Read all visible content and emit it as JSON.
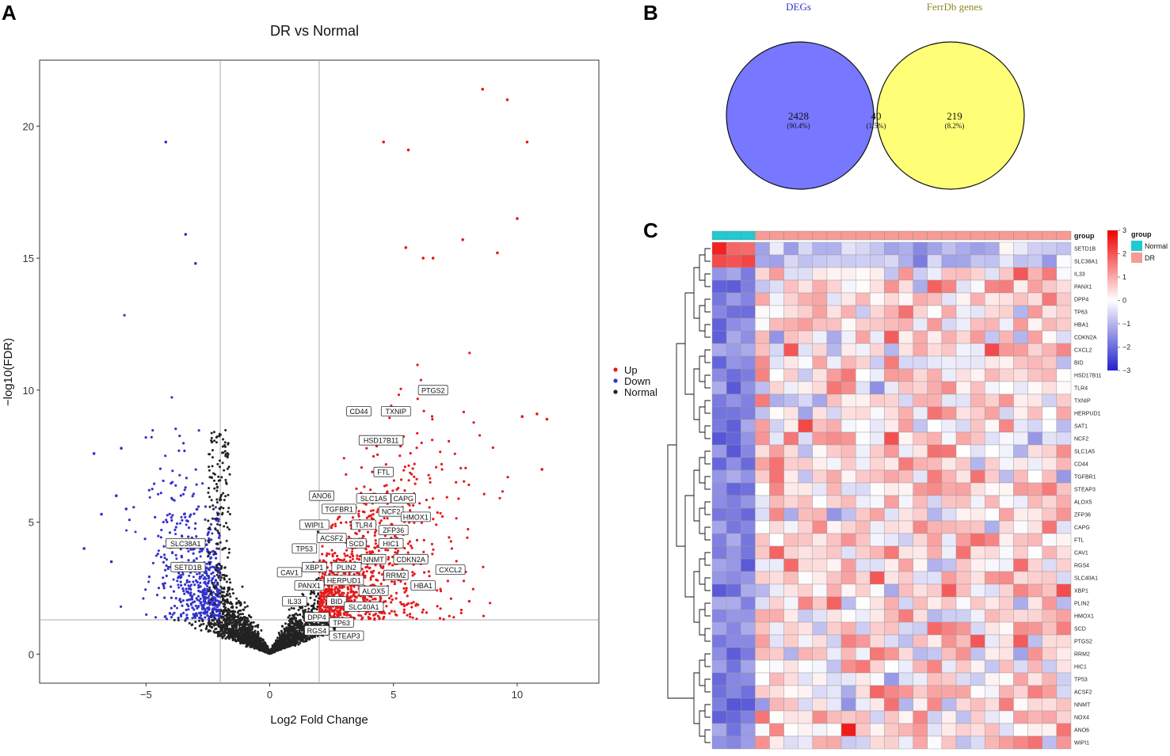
{
  "panels": {
    "a": "A",
    "b": "B",
    "c": "C"
  },
  "chart_data": [
    {
      "type": "scatter",
      "panel": "A",
      "title": "DR vs Normal",
      "xlabel": "Log2 Fold Change",
      "ylabel": "−log10(FDR)",
      "xlim": [
        -9.3,
        13.3
      ],
      "ylim": [
        -1.1,
        22.5
      ],
      "xticks": [
        -5,
        0,
        5,
        10
      ],
      "yticks": [
        0,
        5,
        10,
        15,
        20
      ],
      "thresholds": {
        "logfc": [
          -2,
          2
        ],
        "neg_log10_fdr": 1.3
      },
      "legend": {
        "position": "right",
        "entries": [
          {
            "name": "Up",
            "color": "#e41a1c"
          },
          {
            "name": "Down",
            "color": "#3333cc"
          },
          {
            "name": "Normal",
            "color": "#222222"
          }
        ]
      },
      "outliers": [
        [
          8.6,
          21.4
        ],
        [
          9.6,
          21.0
        ],
        [
          10.4,
          19.4
        ],
        [
          4.6,
          19.4
        ],
        [
          5.6,
          19.1
        ],
        [
          10.0,
          16.5
        ],
        [
          7.8,
          15.7
        ],
        [
          5.5,
          15.4
        ],
        [
          6.2,
          15.0
        ],
        [
          6.6,
          15.0
        ],
        [
          9.2,
          15.2
        ],
        [
          11.2,
          8.9
        ],
        [
          10.8,
          9.1
        ],
        [
          10.2,
          9.0
        ],
        [
          11.0,
          7.0
        ],
        [
          -4.2,
          19.4
        ],
        [
          -3.4,
          15.9
        ],
        [
          -3.0,
          14.8
        ],
        [
          -7.1,
          7.6
        ],
        [
          -6.0,
          7.8
        ],
        [
          -6.8,
          5.3
        ],
        [
          -6.2,
          6.0
        ],
        [
          -5.8,
          5.5
        ],
        [
          -7.5,
          4.0
        ],
        [
          -6.4,
          3.5
        ]
      ],
      "labels": [
        {
          "text": "PTGS2",
          "x": 6.6,
          "y": 10.0
        },
        {
          "text": "CD44",
          "x": 3.6,
          "y": 9.2
        },
        {
          "text": "TXNIP",
          "x": 5.1,
          "y": 9.2
        },
        {
          "text": "HSD17B11",
          "x": 4.5,
          "y": 8.1
        },
        {
          "text": "FTL",
          "x": 4.6,
          "y": 6.9
        },
        {
          "text": "ANO6",
          "x": 2.1,
          "y": 6.0
        },
        {
          "text": "SLC1A5",
          "x": 4.2,
          "y": 5.9
        },
        {
          "text": "CAPG",
          "x": 5.4,
          "y": 5.9
        },
        {
          "text": "TGFBR1",
          "x": 2.8,
          "y": 5.5
        },
        {
          "text": "NCF2",
          "x": 4.9,
          "y": 5.4
        },
        {
          "text": "HMOX1",
          "x": 5.9,
          "y": 5.2
        },
        {
          "text": "WIPI1",
          "x": 1.8,
          "y": 4.9
        },
        {
          "text": "TLR4",
          "x": 3.8,
          "y": 4.9
        },
        {
          "text": "ZFP36",
          "x": 5.0,
          "y": 4.7
        },
        {
          "text": "ACSF2",
          "x": 2.5,
          "y": 4.4
        },
        {
          "text": "SLC38A1",
          "x": -3.4,
          "y": 4.2
        },
        {
          "text": "TP53",
          "x": 1.4,
          "y": 4.0
        },
        {
          "text": "SCD",
          "x": 3.5,
          "y": 4.2
        },
        {
          "text": "HIC1",
          "x": 4.9,
          "y": 4.2
        },
        {
          "text": "NNMT",
          "x": 4.2,
          "y": 3.6
        },
        {
          "text": "CDKN2A",
          "x": 5.7,
          "y": 3.6
        },
        {
          "text": "SETD1B",
          "x": -3.3,
          "y": 3.3
        },
        {
          "text": "XBP1",
          "x": 1.8,
          "y": 3.3
        },
        {
          "text": "PLIN2",
          "x": 3.1,
          "y": 3.3
        },
        {
          "text": "CAV1",
          "x": 0.8,
          "y": 3.1
        },
        {
          "text": "CXCL2",
          "x": 7.3,
          "y": 3.2
        },
        {
          "text": "RRM2",
          "x": 5.1,
          "y": 3.0
        },
        {
          "text": "HERPUD1",
          "x": 3.0,
          "y": 2.8
        },
        {
          "text": "PANX1",
          "x": 1.6,
          "y": 2.6
        },
        {
          "text": "HBA1",
          "x": 6.2,
          "y": 2.6
        },
        {
          "text": "ALOX5",
          "x": 4.2,
          "y": 2.4
        },
        {
          "text": "IL33",
          "x": 1.0,
          "y": 2.0
        },
        {
          "text": "BID",
          "x": 2.7,
          "y": 2.0
        },
        {
          "text": "SLC40A1",
          "x": 3.8,
          "y": 1.8
        },
        {
          "text": "DPP4",
          "x": 1.9,
          "y": 1.4
        },
        {
          "text": "TP63",
          "x": 2.9,
          "y": 1.2
        },
        {
          "text": "RGS4",
          "x": 1.9,
          "y": 0.9
        },
        {
          "text": "STEAP3",
          "x": 3.1,
          "y": 0.7
        }
      ]
    },
    {
      "type": "venn",
      "panel": "B",
      "sets": [
        {
          "name": "DEGs",
          "color": "#7777ff",
          "only": "2428",
          "only_pct": "(90.4%)"
        },
        {
          "name": "FerrDb genes",
          "color": "#ffff77",
          "only": "219",
          "only_pct": "(8.2%)"
        }
      ],
      "intersection": {
        "count": "40",
        "pct": "(1.5%)",
        "color": "#bbb777"
      }
    },
    {
      "type": "heatmap",
      "panel": "C",
      "annotation_title": "group",
      "groups": [
        {
          "name": "Normal",
          "color": "#22c9d1",
          "n": 3
        },
        {
          "name": "DR",
          "color": "#f69b95",
          "n": 22
        }
      ],
      "color_scale": {
        "min": -3,
        "max": 3,
        "ticks": [
          3,
          2,
          1,
          0,
          -1,
          -2,
          -3
        ],
        "low": "#2222cc",
        "mid": "#ffffff",
        "high": "#ee0000"
      },
      "rows": [
        "SETD1B",
        "SLC38A1",
        "IL33",
        "PANX1",
        "DPP4",
        "TP63",
        "HBA1",
        "CDKN2A",
        "CXCL2",
        "BID",
        "HSD17B11",
        "TLR4",
        "TXNIP",
        "HERPUD1",
        "SAT1",
        "NCF2",
        "SLC1A5",
        "CD44",
        "TGFBR1",
        "STEAP3",
        "ALOX5",
        "ZFP36",
        "CAPG",
        "FTL",
        "CAV1",
        "RGS4",
        "SLC40A1",
        "XBP1",
        "PLIN2",
        "HMOX1",
        "SCD",
        "PTGS2",
        "RRM2",
        "HIC1",
        "TP53",
        "ACSF2",
        "NNMT",
        "NOX4",
        "ANO6",
        "WIPI1"
      ],
      "n_columns": 25
    }
  ]
}
